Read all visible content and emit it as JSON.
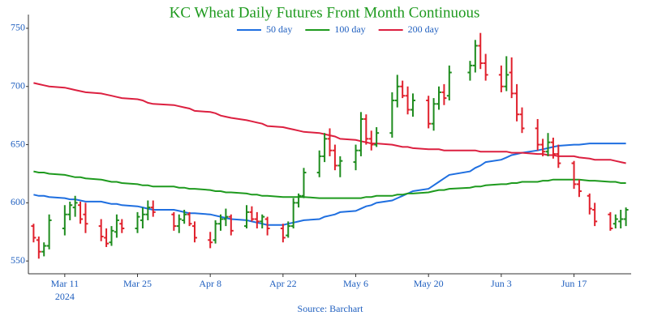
{
  "chart_data": {
    "type": "ohlc",
    "title": "KC Wheat Daily Futures Front Month Continuous",
    "source": "Source: Barchart",
    "x": [
      "2024-03-05",
      "2024-03-06",
      "2024-03-07",
      "2024-03-08",
      "2024-03-11",
      "2024-03-12",
      "2024-03-13",
      "2024-03-14",
      "2024-03-15",
      "2024-03-18",
      "2024-03-19",
      "2024-03-20",
      "2024-03-21",
      "2024-03-22",
      "2024-03-25",
      "2024-03-26",
      "2024-03-27",
      "2024-03-28",
      "2024-04-01",
      "2024-04-02",
      "2024-04-03",
      "2024-04-04",
      "2024-04-05",
      "2024-04-08",
      "2024-04-09",
      "2024-04-10",
      "2024-04-11",
      "2024-04-12",
      "2024-04-15",
      "2024-04-16",
      "2024-04-17",
      "2024-04-18",
      "2024-04-19",
      "2024-04-22",
      "2024-04-23",
      "2024-04-24",
      "2024-04-25",
      "2024-04-26",
      "2024-04-29",
      "2024-04-30",
      "2024-05-01",
      "2024-05-02",
      "2024-05-03",
      "2024-05-06",
      "2024-05-07",
      "2024-05-08",
      "2024-05-09",
      "2024-05-10",
      "2024-05-13",
      "2024-05-14",
      "2024-05-15",
      "2024-05-16",
      "2024-05-17",
      "2024-05-20",
      "2024-05-21",
      "2024-05-22",
      "2024-05-23",
      "2024-05-24",
      "2024-05-28",
      "2024-05-29",
      "2024-05-30",
      "2024-05-31",
      "2024-06-03",
      "2024-06-04",
      "2024-06-05",
      "2024-06-06",
      "2024-06-07",
      "2024-06-10",
      "2024-06-11",
      "2024-06-12",
      "2024-06-13",
      "2024-06-14",
      "2024-06-17",
      "2024-06-18",
      "2024-06-20",
      "2024-06-21",
      "2024-06-24",
      "2024-06-25",
      "2024-06-26",
      "2024-06-27"
    ],
    "open": [
      580,
      568,
      558,
      563,
      578,
      590,
      596,
      598,
      590,
      580,
      570,
      566,
      575,
      582,
      578,
      585,
      590,
      596,
      590,
      580,
      585,
      590,
      580,
      568,
      568,
      582,
      586,
      588,
      580,
      592,
      586,
      584,
      586,
      578,
      572,
      580,
      600,
      606,
      626,
      640,
      655,
      645,
      632,
      635,
      645,
      672,
      655,
      650,
      660,
      688,
      700,
      692,
      680,
      688,
      668,
      685,
      695,
      692,
      712,
      718,
      735,
      720,
      710,
      700,
      712,
      694,
      676,
      664,
      650,
      644,
      652,
      642,
      634,
      616,
      606,
      594,
      590,
      582,
      584,
      586
    ],
    "high": [
      582,
      571,
      566,
      590,
      598,
      601,
      606,
      601,
      600,
      586,
      578,
      580,
      590,
      586,
      592,
      596,
      602,
      602,
      592,
      590,
      594,
      592,
      584,
      575,
      585,
      590,
      595,
      590,
      598,
      597,
      592,
      590,
      588,
      582,
      584,
      604,
      608,
      630,
      645,
      660,
      664,
      650,
      640,
      650,
      678,
      676,
      662,
      665,
      695,
      710,
      705,
      700,
      694,
      692,
      690,
      700,
      702,
      718,
      722,
      740,
      746,
      728,
      718,
      726,
      725,
      702,
      682,
      672,
      655,
      660,
      656,
      650,
      636,
      620,
      608,
      600,
      592,
      590,
      594,
      596
    ],
    "low": [
      566,
      552,
      554,
      560,
      572,
      585,
      588,
      582,
      574,
      567,
      562,
      563,
      570,
      574,
      574,
      578,
      585,
      588,
      576,
      574,
      582,
      580,
      566,
      561,
      565,
      576,
      580,
      572,
      578,
      584,
      578,
      578,
      572,
      566,
      570,
      578,
      596,
      604,
      622,
      635,
      640,
      628,
      622,
      628,
      640,
      650,
      645,
      648,
      656,
      682,
      690,
      676,
      674,
      664,
      662,
      680,
      684,
      688,
      705,
      712,
      715,
      705,
      695,
      696,
      690,
      670,
      660,
      645,
      640,
      640,
      638,
      630,
      612,
      605,
      590,
      580,
      576,
      578,
      578,
      580
    ],
    "close": [
      570,
      558,
      563,
      585,
      590,
      598,
      600,
      586,
      582,
      571,
      565,
      576,
      585,
      578,
      588,
      590,
      596,
      592,
      580,
      586,
      590,
      582,
      570,
      566,
      582,
      586,
      588,
      576,
      592,
      586,
      584,
      588,
      578,
      570,
      580,
      600,
      606,
      626,
      640,
      655,
      645,
      632,
      636,
      645,
      672,
      655,
      650,
      660,
      688,
      700,
      692,
      680,
      688,
      668,
      685,
      695,
      690,
      712,
      718,
      735,
      720,
      710,
      700,
      710,
      694,
      676,
      664,
      650,
      644,
      652,
      642,
      634,
      616,
      610,
      595,
      584,
      578,
      586,
      586,
      594
    ],
    "up_color": "#1e8c1e",
    "down_color": "#e0202c",
    "series": [
      {
        "name": "50 day",
        "color": "#1f6fe0",
        "values": [
          607,
          606,
          606,
          605,
          604,
          603,
          603,
          602,
          601,
          601,
          600,
          599,
          599,
          598,
          597,
          596,
          595,
          594,
          594,
          593,
          592,
          591,
          591,
          590,
          589,
          588,
          587,
          586,
          585,
          584,
          583,
          582,
          581,
          581,
          582,
          583,
          584,
          585,
          586,
          588,
          589,
          590,
          592,
          593,
          595,
          597,
          598,
          600,
          602,
          604,
          606,
          608,
          610,
          612,
          615,
          618,
          621,
          624,
          627,
          630,
          632,
          635,
          637,
          639,
          641,
          642,
          643,
          645,
          646,
          647,
          648,
          649,
          650,
          650,
          651,
          651,
          651,
          651,
          651,
          651
        ]
      },
      {
        "name": "100 day",
        "color": "#1e9a1e",
        "values": [
          627,
          626,
          626,
          625,
          624,
          623,
          622,
          622,
          621,
          620,
          619,
          618,
          618,
          617,
          616,
          615,
          615,
          614,
          614,
          613,
          613,
          612,
          612,
          611,
          610,
          610,
          609,
          609,
          608,
          607,
          607,
          606,
          606,
          605,
          605,
          605,
          605,
          605,
          604,
          604,
          604,
          604,
          604,
          604,
          604,
          605,
          605,
          606,
          606,
          607,
          607,
          608,
          608,
          609,
          610,
          611,
          611,
          612,
          613,
          614,
          614,
          615,
          616,
          616,
          617,
          617,
          618,
          618,
          619,
          619,
          620,
          620,
          620,
          620,
          619,
          619,
          618,
          618,
          617,
          617
        ]
      },
      {
        "name": "200 day",
        "color": "#dc2040",
        "values": [
          703,
          702,
          701,
          700,
          699,
          698,
          697,
          696,
          695,
          694,
          693,
          692,
          691,
          690,
          689,
          688,
          686,
          685,
          684,
          683,
          682,
          681,
          679,
          678,
          677,
          675,
          674,
          673,
          671,
          670,
          669,
          668,
          666,
          665,
          664,
          663,
          662,
          661,
          660,
          659,
          658,
          657,
          655,
          654,
          653,
          652,
          651,
          651,
          650,
          649,
          648,
          648,
          647,
          646,
          646,
          646,
          645,
          645,
          645,
          645,
          644,
          644,
          644,
          644,
          643,
          643,
          643,
          642,
          642,
          641,
          641,
          640,
          640,
          639,
          638,
          637,
          637,
          636,
          635,
          634
        ]
      }
    ],
    "xlim": [
      "2024-03-04",
      "2024-06-28"
    ],
    "xticks": [
      {
        "value": "2024-03-11",
        "label": "Mar 11"
      },
      {
        "value": "2024-03-25",
        "label": "Mar 25"
      },
      {
        "value": "2024-04-08",
        "label": "Apr 8"
      },
      {
        "value": "2024-04-22",
        "label": "Apr 22"
      },
      {
        "value": "2024-05-06",
        "label": "May 6"
      },
      {
        "value": "2024-05-20",
        "label": "May 20"
      },
      {
        "value": "2024-06-03",
        "label": "Jun 3"
      },
      {
        "value": "2024-06-17",
        "label": "Jun 17"
      }
    ],
    "x_year_label": "2024",
    "ylim": [
      539,
      759
    ],
    "yticks": [
      550,
      600,
      650,
      700,
      750
    ],
    "grid": false
  }
}
